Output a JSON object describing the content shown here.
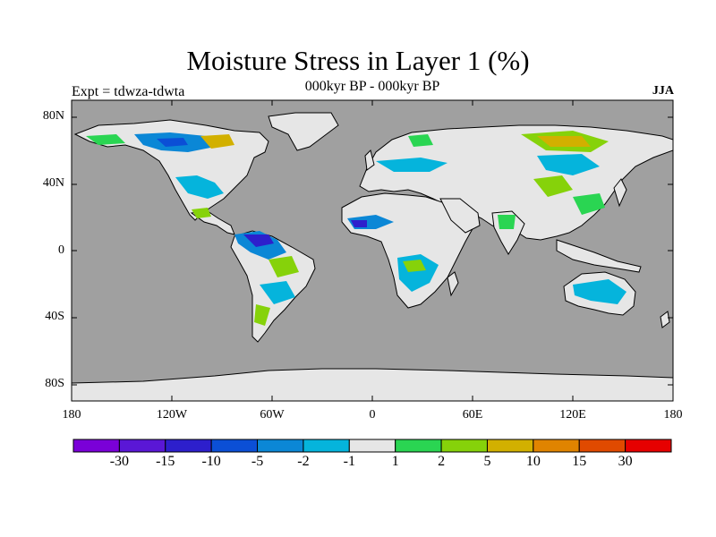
{
  "map": {
    "title": "Moisture Stress in Layer 1 (%)",
    "subtitle": "000kyr BP - 000kyr BP",
    "left_label": "Expt = tdwza-tdwta",
    "right_label": "JJA",
    "lat_ticks": [
      "80N",
      "40N",
      "0",
      "40S",
      "80S"
    ],
    "lon_ticks": [
      "180",
      "120W",
      "60W",
      "0",
      "60E",
      "120E",
      "180"
    ],
    "colors": {
      "ocean": "#a0a0a0",
      "land_neutral": "#e6e6e6",
      "coast": "#000000"
    }
  },
  "colorbar": {
    "colors": [
      "#7a00d8",
      "#5a17d6",
      "#2d1fcc",
      "#0b4fd6",
      "#0b87d6",
      "#05b4dc",
      "#e6e6e6",
      "#2ad552",
      "#86d20a",
      "#d2b000",
      "#e08400",
      "#e04a00",
      "#e60000"
    ],
    "labels": [
      "-30",
      "-15",
      "-10",
      "-5",
      "-2",
      "-1",
      "1",
      "2",
      "5",
      "10",
      "15",
      "30"
    ]
  }
}
